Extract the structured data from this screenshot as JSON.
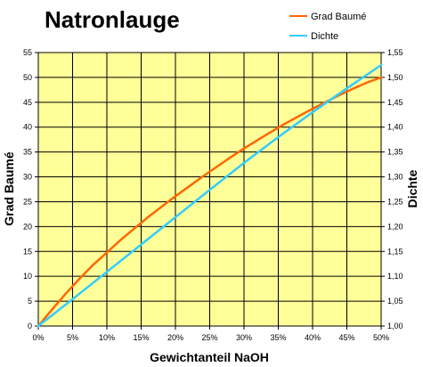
{
  "chart_data": {
    "type": "line",
    "title": "Natronlauge",
    "xlabel": "Gewichtanteil NaOH",
    "ylabel": "Grad Baumé",
    "y2label": "Dichte",
    "xlim": [
      0,
      0.5
    ],
    "ylim": [
      0,
      55
    ],
    "y2lim": [
      1.0,
      1.55
    ],
    "x_ticks": [
      0,
      0.05,
      0.1,
      0.15,
      0.2,
      0.25,
      0.3,
      0.35,
      0.4,
      0.45,
      0.5
    ],
    "x_tick_labels": [
      "0%",
      "5%",
      "10%",
      "15%",
      "20%",
      "25%",
      "30%",
      "35%",
      "40%",
      "45%",
      "50%"
    ],
    "y_ticks": [
      0,
      5,
      10,
      15,
      20,
      25,
      30,
      35,
      40,
      45,
      50,
      55
    ],
    "y_tick_labels": [
      "0",
      "5",
      "10",
      "15",
      "20",
      "25",
      "30",
      "35",
      "40",
      "45",
      "50",
      "55"
    ],
    "y2_ticks": [
      1.0,
      1.05,
      1.1,
      1.15,
      1.2,
      1.25,
      1.3,
      1.35,
      1.4,
      1.45,
      1.5,
      1.55
    ],
    "y2_tick_labels": [
      "1,00",
      "1,05",
      "1,10",
      "1,15",
      "1,20",
      "1,25",
      "1,30",
      "1,35",
      "1,40",
      "1,45",
      "1,50",
      "1,55"
    ],
    "grid": true,
    "legend_position": "top-right",
    "colors": {
      "plot_background": "#FFFF99",
      "grid": "#000000",
      "baume": "#FF6600",
      "dichte": "#33CCFF"
    },
    "series": [
      {
        "name": "Grad Baumé",
        "axis": "left",
        "x": [
          0,
          0.02,
          0.04,
          0.06,
          0.08,
          0.1,
          0.12,
          0.14,
          0.16,
          0.18,
          0.2,
          0.22,
          0.24,
          0.26,
          0.28,
          0.3,
          0.32,
          0.34,
          0.36,
          0.38,
          0.4,
          0.42,
          0.44,
          0.46,
          0.48,
          0.5
        ],
        "values": [
          0,
          3.3,
          6.5,
          9.5,
          12.3,
          14.8,
          17.3,
          19.6,
          21.9,
          24.0,
          26.1,
          28.1,
          30.1,
          32.0,
          33.9,
          35.7,
          37.4,
          39.1,
          40.7,
          42.2,
          43.7,
          45.1,
          46.5,
          47.8,
          49.0,
          50.0
        ]
      },
      {
        "name": "Dichte",
        "axis": "right",
        "x": [
          0,
          0.05,
          0.1,
          0.15,
          0.2,
          0.25,
          0.3,
          0.35,
          0.4,
          0.45,
          0.5
        ],
        "values": [
          1.0,
          1.054,
          1.109,
          1.164,
          1.219,
          1.274,
          1.328,
          1.38,
          1.43,
          1.478,
          1.525
        ]
      }
    ]
  }
}
